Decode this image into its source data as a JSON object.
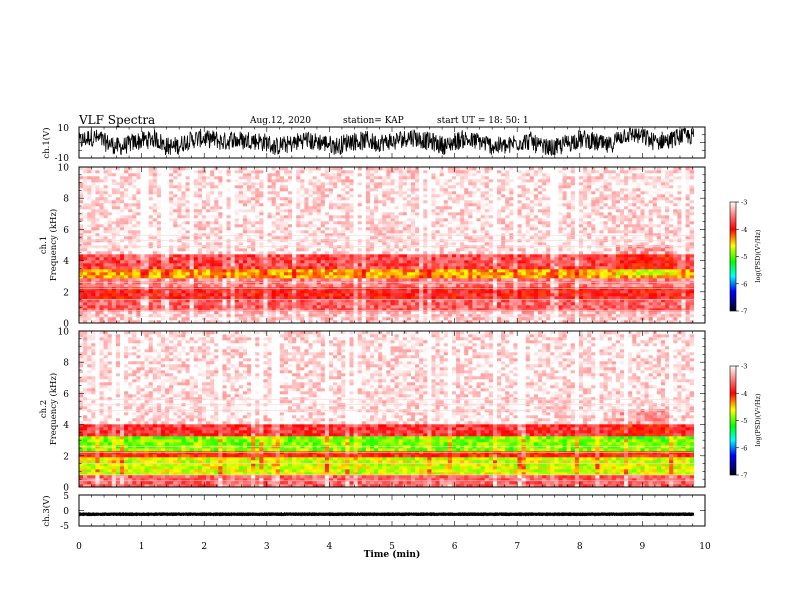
{
  "header": {
    "title": "VLF Spectra",
    "date": "Aug.12, 2020",
    "station": "station= KAP",
    "start": "start  UT =   18: 50: 1"
  },
  "colors": {
    "axis": "#000000",
    "background": "#ffffff",
    "spectrum_high": "#ff2020",
    "spectrum_mid": "#ffff00",
    "spectrum_low": "#00ff40",
    "waveform": "#000000"
  },
  "chart_data": [
    {
      "id": "ch1_waveform",
      "type": "line",
      "ylabel": "ch.1(V)",
      "xlim": [
        0,
        10
      ],
      "ylim": [
        -10,
        10
      ],
      "y_ticks": [
        "10",
        "-10"
      ],
      "x_end_min": 9.82,
      "amplitude_range_v": [
        -8,
        9
      ]
    },
    {
      "id": "ch1_spectrogram",
      "type": "heatmap",
      "ylabel": "ch.1\nFrequency  (kHz)",
      "xlim": [
        0,
        10
      ],
      "ylim": [
        0,
        10
      ],
      "y_ticks": [
        "0",
        "2",
        "4",
        "6",
        "8",
        "10"
      ],
      "x_end_min": 9.82,
      "colorbar": {
        "label": "log(PSD)(V²/Hz)",
        "range": [
          -7,
          -3
        ],
        "ticks": [
          "-3",
          "-4",
          "-5",
          "-6",
          "-7"
        ]
      },
      "bands": [
        {
          "f_min_khz": 0.0,
          "f_max_khz": 0.8,
          "level": -3.2
        },
        {
          "f_min_khz": 0.8,
          "f_max_khz": 1.6,
          "level": -3.6
        },
        {
          "f_min_khz": 1.6,
          "f_max_khz": 2.3,
          "level": -3.9
        },
        {
          "f_min_khz": 2.3,
          "f_max_khz": 2.8,
          "level": -3.5
        },
        {
          "f_min_khz": 2.8,
          "f_max_khz": 3.4,
          "level": -4.4
        },
        {
          "f_min_khz": 3.4,
          "f_max_khz": 4.4,
          "level": -3.7
        },
        {
          "f_min_khz": 4.4,
          "f_max_khz": 10.0,
          "level": -3.1
        }
      ]
    },
    {
      "id": "ch2_spectrogram",
      "type": "heatmap",
      "ylabel": "ch.2\nFrequency  (kHz)",
      "xlim": [
        0,
        10
      ],
      "ylim": [
        0,
        10
      ],
      "y_ticks": [
        "0",
        "2",
        "4",
        "6",
        "8",
        "10"
      ],
      "x_end_min": 9.82,
      "colorbar": {
        "label": "log(PSD)(V²/Hz)",
        "range": [
          -7,
          -3
        ],
        "ticks": [
          "-3",
          "-4",
          "-5",
          "-6",
          "-7"
        ]
      },
      "bands": [
        {
          "f_min_khz": 0.0,
          "f_max_khz": 0.8,
          "level": -3.6
        },
        {
          "f_min_khz": 0.8,
          "f_max_khz": 2.0,
          "level": -4.7
        },
        {
          "f_min_khz": 2.0,
          "f_max_khz": 2.4,
          "level": -4.0
        },
        {
          "f_min_khz": 2.4,
          "f_max_khz": 3.2,
          "level": -4.9
        },
        {
          "f_min_khz": 3.2,
          "f_max_khz": 4.0,
          "level": -3.8
        },
        {
          "f_min_khz": 4.0,
          "f_max_khz": 10.0,
          "level": -3.1
        }
      ]
    },
    {
      "id": "ch3_waveform",
      "type": "line",
      "ylabel": "ch.3(V)",
      "xlim": [
        0,
        10
      ],
      "ylim": [
        -5,
        5
      ],
      "y_ticks": [
        "5",
        "0",
        "-5"
      ],
      "x_end_min": 9.82,
      "offset_v": -1.2,
      "amplitude_v": 0.6,
      "xlabel": "Time  (min)",
      "x_ticks": [
        "0",
        "1",
        "2",
        "3",
        "4",
        "5",
        "6",
        "7",
        "8",
        "9",
        "10"
      ]
    }
  ]
}
